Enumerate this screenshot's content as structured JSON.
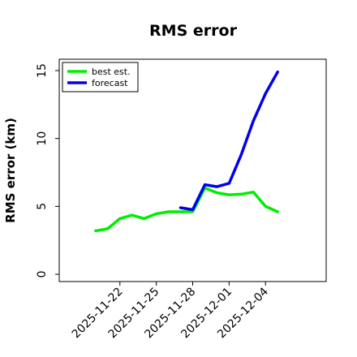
{
  "chart_data": {
    "type": "line",
    "title": "RMS error",
    "xlabel": "",
    "ylabel": "RMS error (km)",
    "ylim": [
      0,
      15
    ],
    "yticks": [
      0,
      5,
      10,
      15
    ],
    "x_ticks": [
      "2025-11-22",
      "2025-11-25",
      "2025-11-28",
      "2025-12-01",
      "2025-12-04"
    ],
    "xlim": [
      "2025-11-17",
      "2025-12-09"
    ],
    "grid": false,
    "legend_position": "top-left",
    "series": [
      {
        "name": "best est.",
        "color": "#00ee00",
        "points": [
          {
            "x": "2025-11-20",
            "y": 3.2
          },
          {
            "x": "2025-11-21",
            "y": 3.35
          },
          {
            "x": "2025-11-22",
            "y": 4.1
          },
          {
            "x": "2025-11-23",
            "y": 4.35
          },
          {
            "x": "2025-11-24",
            "y": 4.1
          },
          {
            "x": "2025-11-25",
            "y": 4.45
          },
          {
            "x": "2025-11-26",
            "y": 4.6
          },
          {
            "x": "2025-11-27",
            "y": 4.6
          },
          {
            "x": "2025-11-28",
            "y": 4.6
          },
          {
            "x": "2025-11-29",
            "y": 6.35
          },
          {
            "x": "2025-11-30",
            "y": 6.0
          },
          {
            "x": "2025-12-01",
            "y": 5.85
          },
          {
            "x": "2025-12-02",
            "y": 5.9
          },
          {
            "x": "2025-12-03",
            "y": 6.05
          },
          {
            "x": "2025-12-04",
            "y": 5.0
          },
          {
            "x": "2025-12-05",
            "y": 4.6
          }
        ]
      },
      {
        "name": "forecast",
        "color": "#0000ee",
        "points": [
          {
            "x": "2025-11-27",
            "y": 4.9
          },
          {
            "x": "2025-11-28",
            "y": 4.75
          },
          {
            "x": "2025-11-29",
            "y": 6.6
          },
          {
            "x": "2025-11-30",
            "y": 6.45
          },
          {
            "x": "2025-12-01",
            "y": 6.7
          },
          {
            "x": "2025-12-02",
            "y": 8.8
          },
          {
            "x": "2025-12-03",
            "y": 11.3
          },
          {
            "x": "2025-12-04",
            "y": 13.3
          },
          {
            "x": "2025-12-05",
            "y": 14.9
          }
        ]
      }
    ]
  }
}
